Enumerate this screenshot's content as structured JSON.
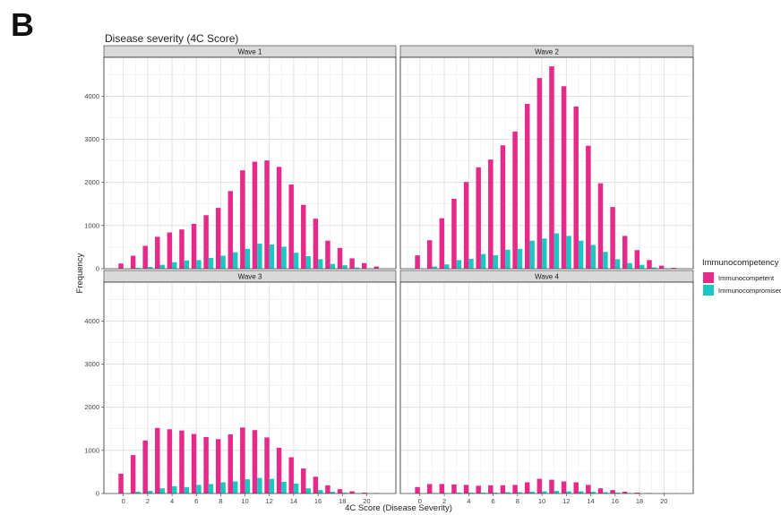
{
  "figure": {
    "panel_label": "B",
    "title": "Disease severity (4C Score)"
  },
  "chart_data": {
    "type": "bar",
    "title": "Disease severity (4C Score)",
    "xlabel": "4C Score (Disease Severity)",
    "ylabel": "Frequency",
    "x": [
      0,
      1,
      2,
      3,
      4,
      5,
      6,
      7,
      8,
      9,
      10,
      11,
      12,
      13,
      14,
      15,
      16,
      17,
      18,
      19,
      20,
      21
    ],
    "x_ticks": [
      "0",
      "2",
      "4",
      "6",
      "8",
      "10",
      "12",
      "14",
      "16",
      "18",
      "20"
    ],
    "y_ticks": [
      "0",
      "1000",
      "2000",
      "3000",
      "4000"
    ],
    "ylim": [
      0,
      4900
    ],
    "grid": true,
    "legend": {
      "title": "Immunocompetency",
      "position": "right",
      "entries": [
        "Immunocompetent",
        "Immunocompromised"
      ]
    },
    "colors": {
      "Immunocompetent": "#E7298A",
      "Immunocompromised": "#1CC6C2"
    },
    "facets": [
      {
        "label": "Wave 1",
        "series": [
          {
            "name": "Immunocompetent",
            "values": [
              120,
              300,
              530,
              740,
              840,
              910,
              1040,
              1240,
              1410,
              1800,
              2280,
              2480,
              2510,
              2360,
              1950,
              1480,
              1160,
              650,
              480,
              240,
              130,
              50
            ]
          },
          {
            "name": "Immunocompromised",
            "values": [
              0,
              20,
              40,
              90,
              150,
              190,
              200,
              250,
              300,
              380,
              460,
              580,
              560,
              510,
              370,
              290,
              220,
              110,
              80,
              30,
              10,
              0
            ]
          }
        ]
      },
      {
        "label": "Wave 2",
        "series": [
          {
            "name": "Immunocompetent",
            "values": [
              310,
              660,
              1170,
              1620,
              2010,
              2350,
              2530,
              2860,
              3180,
              3820,
              4420,
              4690,
              4230,
              3760,
              2850,
              1980,
              1430,
              760,
              430,
              200,
              70,
              20
            ]
          },
          {
            "name": "Immunocompromised",
            "values": [
              0,
              50,
              100,
              200,
              230,
              340,
              310,
              440,
              460,
              650,
              700,
              820,
              760,
              650,
              550,
              390,
              220,
              130,
              90,
              30,
              10,
              0
            ]
          }
        ]
      },
      {
        "label": "Wave 3",
        "series": [
          {
            "name": "Immunocompetent",
            "values": [
              460,
              890,
              1230,
              1520,
              1490,
              1460,
              1380,
              1310,
              1260,
              1370,
              1530,
              1470,
              1300,
              1060,
              840,
              580,
              390,
              190,
              100,
              50,
              20,
              10
            ]
          },
          {
            "name": "Immunocompromised",
            "values": [
              0,
              40,
              60,
              120,
              170,
              150,
              200,
              220,
              260,
              280,
              330,
              360,
              340,
              270,
              230,
              120,
              80,
              40,
              20,
              10,
              0,
              0
            ]
          }
        ]
      },
      {
        "label": "Wave 4",
        "series": [
          {
            "name": "Immunocompetent",
            "values": [
              150,
              220,
              220,
              210,
              200,
              180,
              190,
              190,
              200,
              260,
              340,
              320,
              280,
              260,
              200,
              120,
              80,
              40,
              20,
              10,
              0,
              0
            ]
          },
          {
            "name": "Immunocompromised",
            "values": [
              0,
              10,
              10,
              20,
              20,
              20,
              20,
              30,
              30,
              40,
              50,
              60,
              50,
              50,
              40,
              30,
              20,
              10,
              5,
              0,
              0,
              0
            ]
          }
        ]
      }
    ]
  }
}
